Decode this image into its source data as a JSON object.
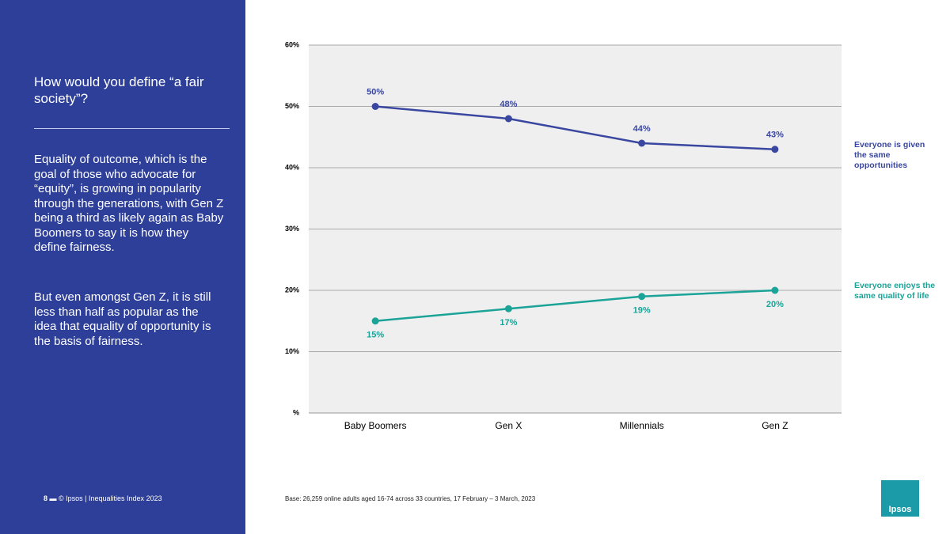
{
  "sidebar": {
    "title": "How would you define “a fair society”?",
    "paragraphs": [
      "Equality of outcome, which is the goal of those who advocate for “equity”, is growing in popularity through the generations, with Gen Z being a third as likely again as Baby Boomers to say it is how they define fairness.",
      "But even amongst Gen Z, it is still less than half as popular as the idea that equality of opportunity is the basis of fairness."
    ],
    "page_number": "8",
    "footer": "© Ipsos | Inequalities Index 2023"
  },
  "base_note": "Base: 26,259 online adults aged 16-74 across 33 countries, 17 February – 3 March, 2023",
  "logo": "Ipsos",
  "chart_data": {
    "type": "line",
    "categories": [
      "Baby Boomers",
      "Gen X",
      "Millennials",
      "Gen Z"
    ],
    "series": [
      {
        "name": "Everyone is given the same opportunities",
        "color": "#3a47a0",
        "values": [
          50,
          48,
          44,
          43
        ],
        "value_labels": [
          "50%",
          "48%",
          "44%",
          "43%"
        ]
      },
      {
        "name": "Everyone enjoys the same quality of life",
        "color": "#1ba398",
        "values": [
          15,
          17,
          19,
          20
        ],
        "value_labels": [
          "15%",
          "17%",
          "19%",
          "20%"
        ]
      }
    ],
    "ylim": [
      0,
      60
    ],
    "yticks": [
      {
        "value": 0,
        "label": "%"
      },
      {
        "value": 10,
        "label": "10%"
      },
      {
        "value": 20,
        "label": "20%"
      },
      {
        "value": 30,
        "label": "30%"
      },
      {
        "value": 40,
        "label": "40%"
      },
      {
        "value": 50,
        "label": "50%"
      },
      {
        "value": 60,
        "label": "60%"
      }
    ],
    "grid": true
  }
}
